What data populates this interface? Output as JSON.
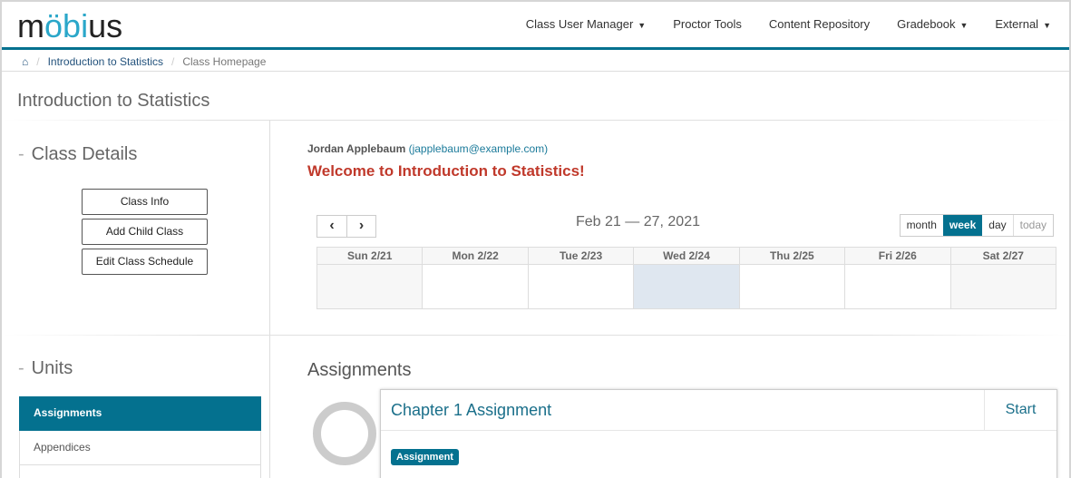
{
  "header": {
    "logo": {
      "m": "m",
      "o1": "ö",
      "b": "b",
      "i": "i",
      "us": "us"
    },
    "nav": [
      {
        "label": "Class User Manager",
        "dropdown": true
      },
      {
        "label": "Proctor Tools",
        "dropdown": false
      },
      {
        "label": "Content Repository",
        "dropdown": false
      },
      {
        "label": "Gradebook",
        "dropdown": true
      },
      {
        "label": "External",
        "dropdown": true
      }
    ]
  },
  "breadcrumb": {
    "home_icon": "home-icon",
    "items": [
      "Introduction to Statistics",
      "Class Homepage"
    ]
  },
  "page_title": "Introduction to Statistics",
  "class_details": {
    "dash": "-",
    "heading": "Class Details",
    "buttons": [
      "Class Info",
      "Add Child Class",
      "Edit Class Schedule"
    ]
  },
  "user": {
    "name": "Jordan Applebaum",
    "email": "(japplebaum@example.com)"
  },
  "welcome": "Welcome to Introduction to Statistics!",
  "calendar": {
    "prev": "‹",
    "next": "›",
    "range": "Feb 21 — 27, 2021",
    "views": [
      "month",
      "week",
      "day",
      "today"
    ],
    "active_view": "week",
    "days": [
      "Sun 2/21",
      "Mon 2/22",
      "Tue 2/23",
      "Wed 2/24",
      "Thu 2/25",
      "Fri 2/26",
      "Sat 2/27"
    ],
    "today_index": 3
  },
  "units": {
    "dash": "-",
    "heading": "Units",
    "items": [
      "Assignments",
      "Appendices",
      ""
    ],
    "active": 0
  },
  "assignments": {
    "heading": "Assignments",
    "items": [
      {
        "name": "Chapter 1 Assignment",
        "action": "Start",
        "badge": "Assignment"
      }
    ]
  },
  "colors": {
    "accent": "#04718f",
    "welcome": "#c0392b",
    "today": "#dfe7f0"
  }
}
